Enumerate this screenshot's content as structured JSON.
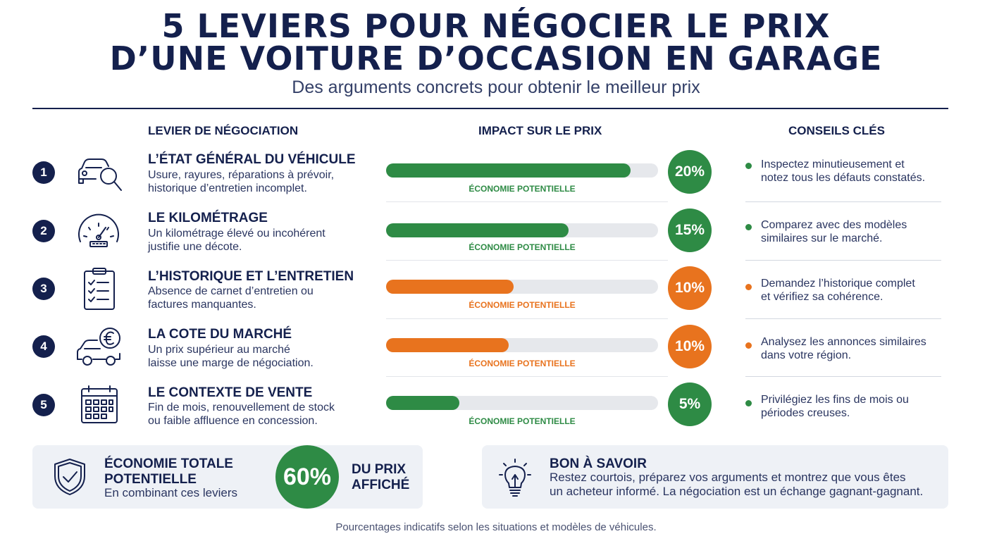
{
  "header": {
    "title_line1": "5 LEVIERS POUR NÉGOCIER LE PRIX",
    "title_line2": "D’UNE VOITURE D’OCCASION EN GARAGE",
    "subtitle": "Des arguments concrets pour obtenir le meilleur prix"
  },
  "columns": {
    "lever": "LEVIER DE NÉGOCIATION",
    "impact": "IMPACT SUR LE PRIX",
    "tips": "CONSEILS CLÉS"
  },
  "colors": {
    "navy": "#14204d",
    "green": "#2e8b45",
    "orange": "#e8731e",
    "track": "#e6e8ec"
  },
  "levers": [
    {
      "number": "1",
      "icon": "car-magnifier-icon",
      "title": "L’ÉTAT GÉNÉRAL DU VÉHICULE",
      "desc_line1": "Usure, rayures, réparations à prévoir,",
      "desc_line2": "historique d’entretien incomplet.",
      "impact_fraction": 0.9,
      "impact_color": "green",
      "caption": "ÉCONOMIE POTENTIELLE",
      "percent": "20%",
      "tip_line1": "Inspectez minutieusement et",
      "tip_line2": "notez tous les défauts constatés."
    },
    {
      "number": "2",
      "icon": "speedometer-icon",
      "title": "LE KILOMÉTRAGE",
      "desc_line1": "Un kilométrage élevé ou incohérent",
      "desc_line2": "justifie une décote.",
      "impact_fraction": 0.67,
      "impact_color": "green",
      "caption": "ÉCONOMIE POTENTIELLE",
      "percent": "15%",
      "tip_line1": "Comparez avec des modèles",
      "tip_line2": "similaires sur le marché."
    },
    {
      "number": "3",
      "icon": "checklist-icon",
      "title": "L’HISTORIQUE ET L’ENTRETIEN",
      "desc_line1": "Absence de carnet d’entretien ou",
      "desc_line2": "factures manquantes.",
      "impact_fraction": 0.47,
      "impact_color": "orange",
      "caption": "ÉCONOMIE POTENTIELLE",
      "percent": "10%",
      "tip_line1": "Demandez l’historique complet",
      "tip_line2": "et vérifiez sa cohérence."
    },
    {
      "number": "4",
      "icon": "car-euro-icon",
      "title": "LA COTE DU MARCHÉ",
      "desc_line1": "Un prix supérieur au marché",
      "desc_line2": "laisse une marge de négociation.",
      "impact_fraction": 0.45,
      "impact_color": "orange",
      "caption": "ÉCONOMIE POTENTIELLE",
      "percent": "10%",
      "tip_line1": "Analysez les annonces similaires",
      "tip_line2": "dans votre région."
    },
    {
      "number": "5",
      "icon": "calendar-icon",
      "title": "LE CONTEXTE DE VENTE",
      "desc_line1": "Fin de mois, renouvellement de stock",
      "desc_line2": "ou faible affluence en concession.",
      "impact_fraction": 0.27,
      "impact_color": "green",
      "caption": "ÉCONOMIE POTENTIELLE",
      "percent": "5%",
      "tip_line1": "Privilégiez les fins de mois ou",
      "tip_line2": "périodes creuses."
    }
  ],
  "summary": {
    "icon": "shield-check-icon",
    "title_line1": "ÉCONOMIE TOTALE",
    "title_line2": "POTENTIELLE",
    "subtitle": "En combinant ces leviers",
    "percent": "60%",
    "label_line1": "DU PRIX",
    "label_line2": "AFFICHÉ"
  },
  "tip_box": {
    "icon": "lightbulb-icon",
    "title": "BON À SAVOIR",
    "line1": "Restez courtois, préparez vos arguments et montrez que vous êtes",
    "line2": "un acheteur informé. La négociation est un échange gagnant-gagnant."
  },
  "footer": "Pourcentages indicatifs selon les situations et modèles de véhicules."
}
